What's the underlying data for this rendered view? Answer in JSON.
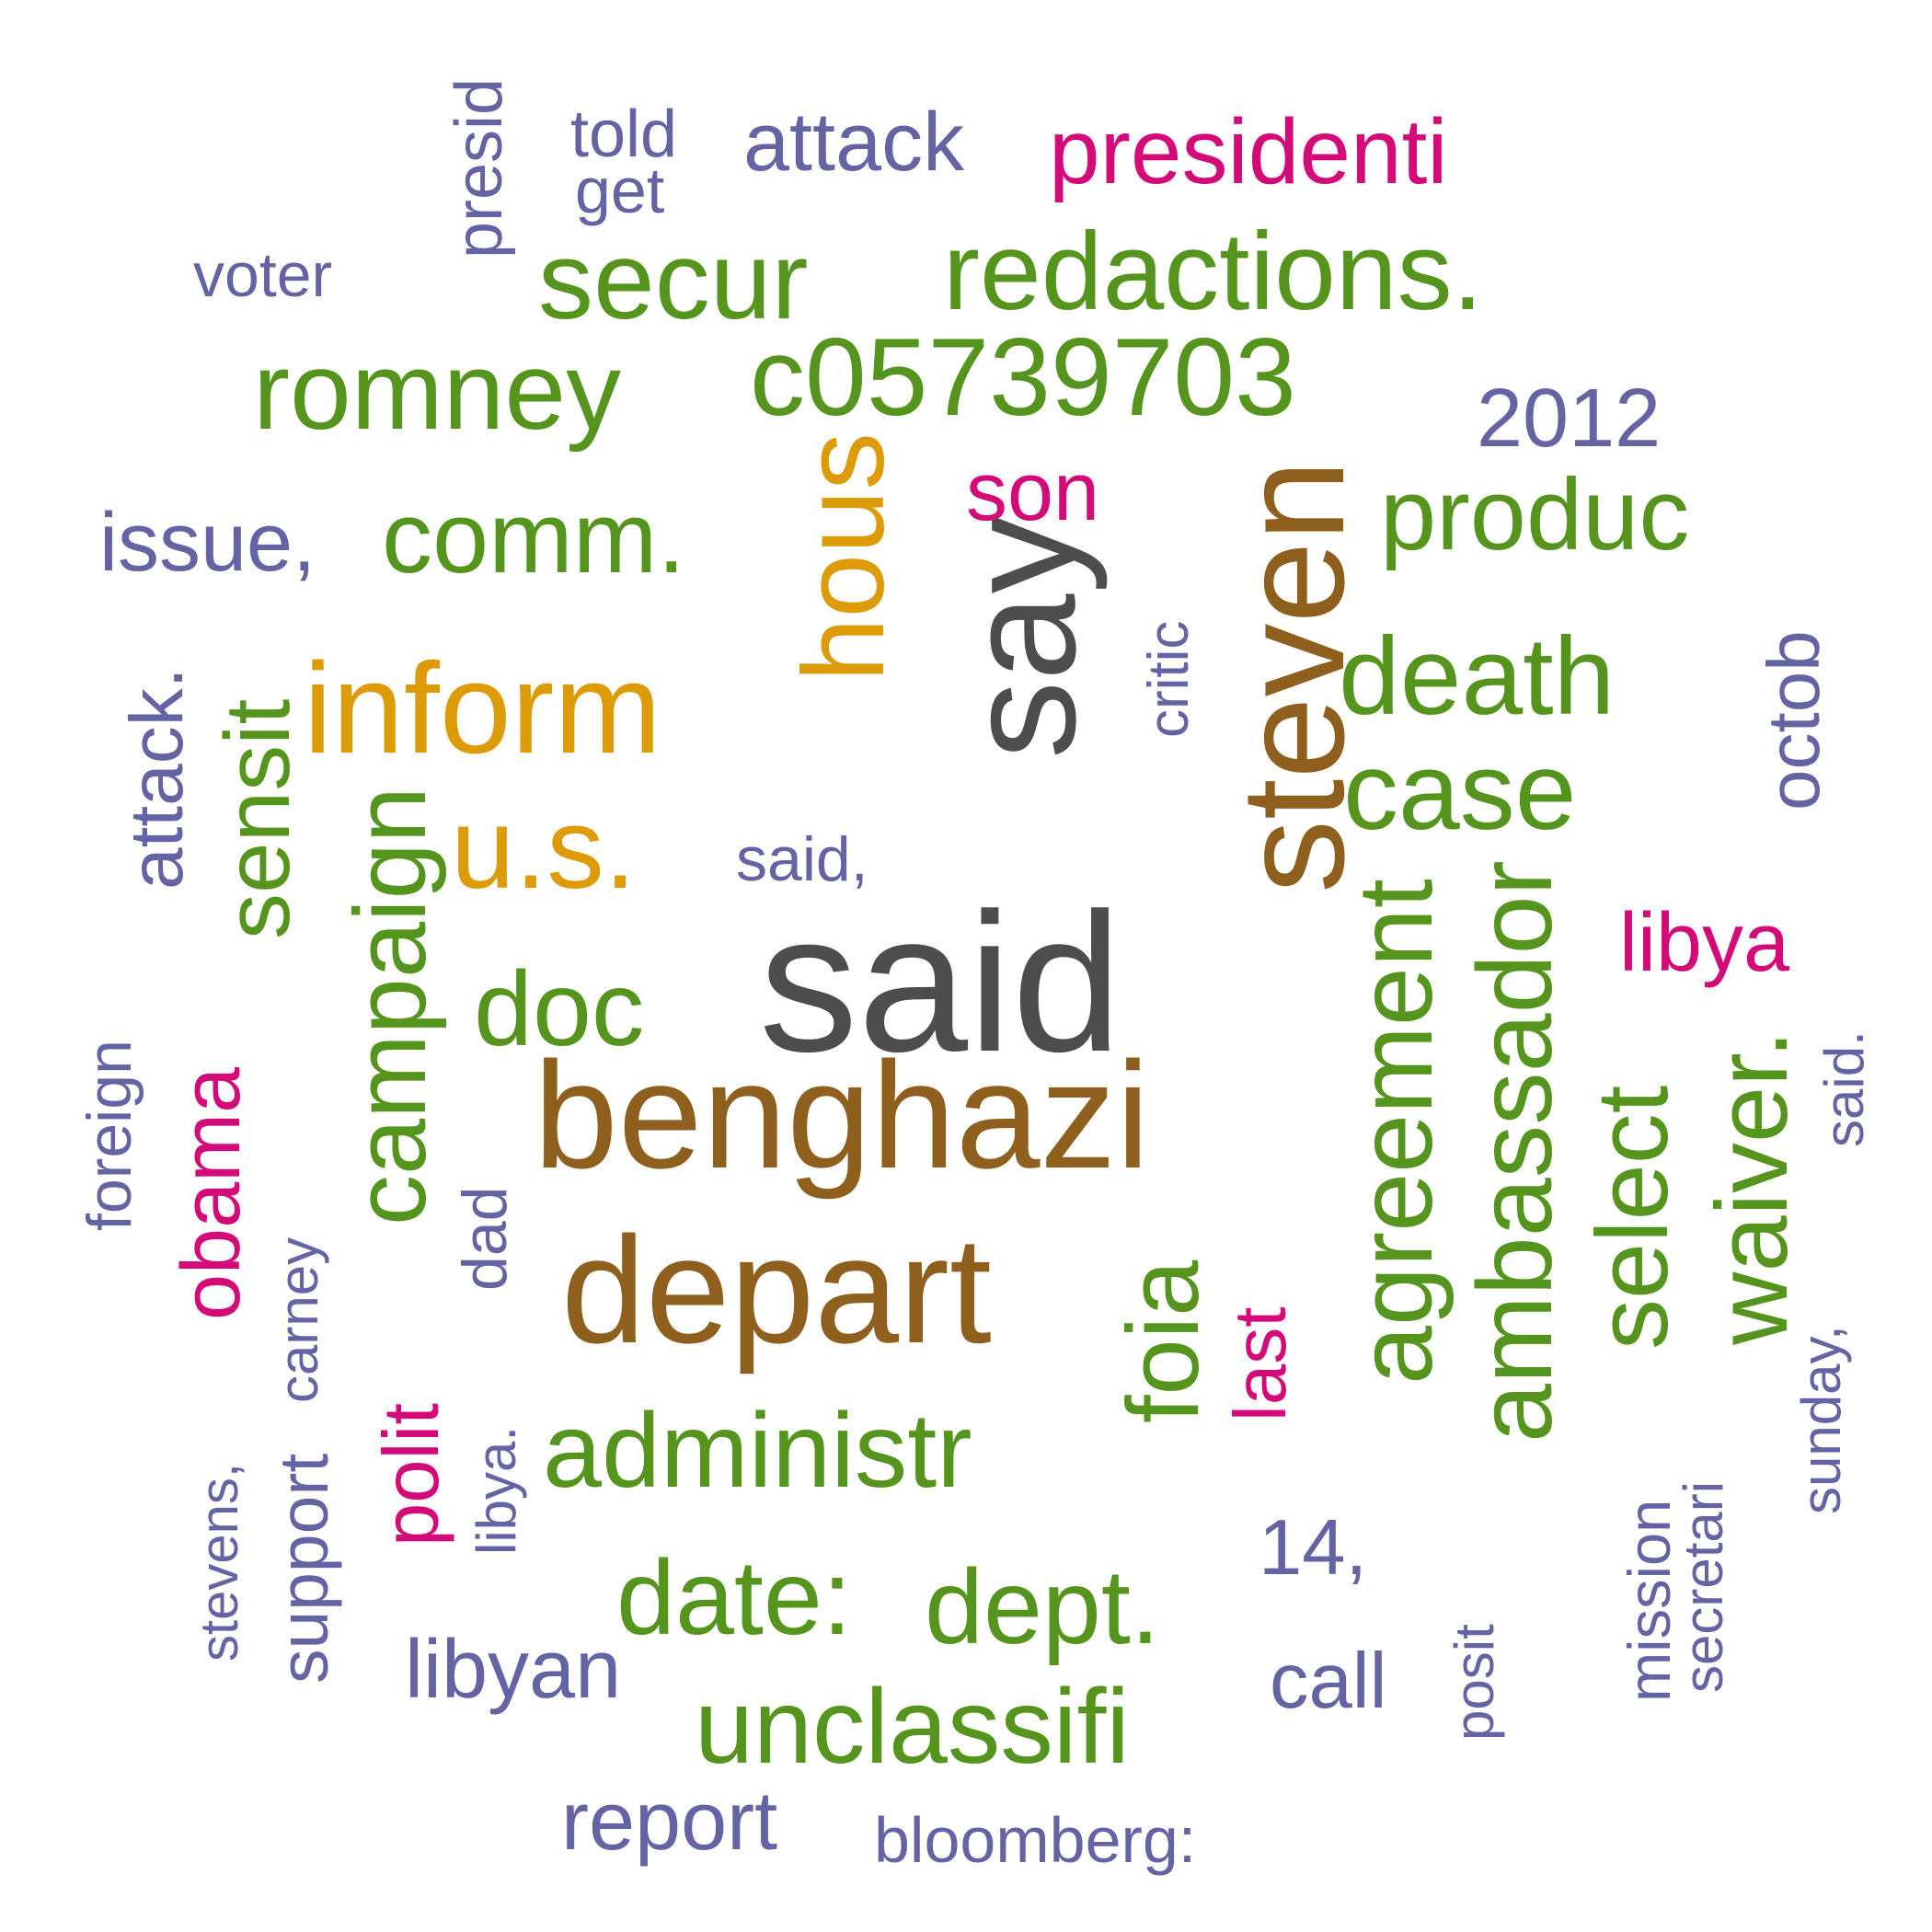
{
  "palette": {
    "dark_gray": "#4d4d4d",
    "brown": "#8f5f1d",
    "orange": "#de9b08",
    "green": "#55951e",
    "magenta": "#d40a78",
    "purple": "#6463a4"
  },
  "words": [
    {
      "text": "said",
      "color": "dark_gray",
      "vertical": false
    },
    {
      "text": "say",
      "color": "dark_gray",
      "vertical": true
    },
    {
      "text": "benghazi",
      "color": "brown",
      "vertical": false
    },
    {
      "text": "depart",
      "color": "brown",
      "vertical": false
    },
    {
      "text": "steven",
      "color": "brown",
      "vertical": true
    },
    {
      "text": "inform",
      "color": "orange",
      "vertical": false
    },
    {
      "text": "u.s.",
      "color": "orange",
      "vertical": false
    },
    {
      "text": "hous",
      "color": "orange",
      "vertical": true
    },
    {
      "text": "secur",
      "color": "green",
      "vertical": false
    },
    {
      "text": "redactions.",
      "color": "green",
      "vertical": false
    },
    {
      "text": "romney",
      "color": "green",
      "vertical": false
    },
    {
      "text": "c05739703",
      "color": "green",
      "vertical": false
    },
    {
      "text": "comm.",
      "color": "green",
      "vertical": false
    },
    {
      "text": "produc",
      "color": "green",
      "vertical": false
    },
    {
      "text": "death",
      "color": "green",
      "vertical": false
    },
    {
      "text": "case",
      "color": "green",
      "vertical": false
    },
    {
      "text": "doc",
      "color": "green",
      "vertical": false
    },
    {
      "text": "administr",
      "color": "green",
      "vertical": false
    },
    {
      "text": "date:",
      "color": "green",
      "vertical": false
    },
    {
      "text": "dept.",
      "color": "green",
      "vertical": false
    },
    {
      "text": "unclassifi",
      "color": "green",
      "vertical": false
    },
    {
      "text": "sensit",
      "color": "green",
      "vertical": true
    },
    {
      "text": "campaign",
      "color": "green",
      "vertical": true
    },
    {
      "text": "foia",
      "color": "green",
      "vertical": true
    },
    {
      "text": "agreement",
      "color": "green",
      "vertical": true
    },
    {
      "text": "ambassador",
      "color": "green",
      "vertical": true
    },
    {
      "text": "select",
      "color": "green",
      "vertical": true
    },
    {
      "text": "waiver.",
      "color": "green",
      "vertical": true
    },
    {
      "text": "presidenti",
      "color": "magenta",
      "vertical": false
    },
    {
      "text": "son",
      "color": "magenta",
      "vertical": false
    },
    {
      "text": "libya",
      "color": "magenta",
      "vertical": false
    },
    {
      "text": "obama",
      "color": "magenta",
      "vertical": true
    },
    {
      "text": "polit",
      "color": "magenta",
      "vertical": true
    },
    {
      "text": "last",
      "color": "magenta",
      "vertical": true
    },
    {
      "text": "told",
      "color": "purple",
      "vertical": false
    },
    {
      "text": "get",
      "color": "purple",
      "vertical": false
    },
    {
      "text": "attack",
      "color": "purple",
      "vertical": false
    },
    {
      "text": "voter",
      "color": "purple",
      "vertical": false
    },
    {
      "text": "2012",
      "color": "purple",
      "vertical": false
    },
    {
      "text": "issue,",
      "color": "purple",
      "vertical": false
    },
    {
      "text": "said,",
      "color": "purple",
      "vertical": false
    },
    {
      "text": "14,",
      "color": "purple",
      "vertical": false
    },
    {
      "text": "call",
      "color": "purple",
      "vertical": false
    },
    {
      "text": "libyan",
      "color": "purple",
      "vertical": false
    },
    {
      "text": "report",
      "color": "purple",
      "vertical": false
    },
    {
      "text": "bloomberg:",
      "color": "purple",
      "vertical": false
    },
    {
      "text": "presid",
      "color": "purple",
      "vertical": true
    },
    {
      "text": "critic",
      "color": "purple",
      "vertical": true
    },
    {
      "text": "octob",
      "color": "purple",
      "vertical": true
    },
    {
      "text": "attack.",
      "color": "purple",
      "vertical": true
    },
    {
      "text": "foreign",
      "color": "purple",
      "vertical": true
    },
    {
      "text": "said.",
      "color": "purple",
      "vertical": true
    },
    {
      "text": "carney",
      "color": "purple",
      "vertical": true
    },
    {
      "text": "dad",
      "color": "purple",
      "vertical": true
    },
    {
      "text": "stevens,",
      "color": "purple",
      "vertical": true
    },
    {
      "text": "support",
      "color": "purple",
      "vertical": true
    },
    {
      "text": "libya.",
      "color": "purple",
      "vertical": true
    },
    {
      "text": "sunday,",
      "color": "purple",
      "vertical": true
    },
    {
      "text": "mission",
      "color": "purple",
      "vertical": true
    },
    {
      "text": "secretari",
      "color": "purple",
      "vertical": true
    },
    {
      "text": "posit",
      "color": "purple",
      "vertical": true
    }
  ]
}
